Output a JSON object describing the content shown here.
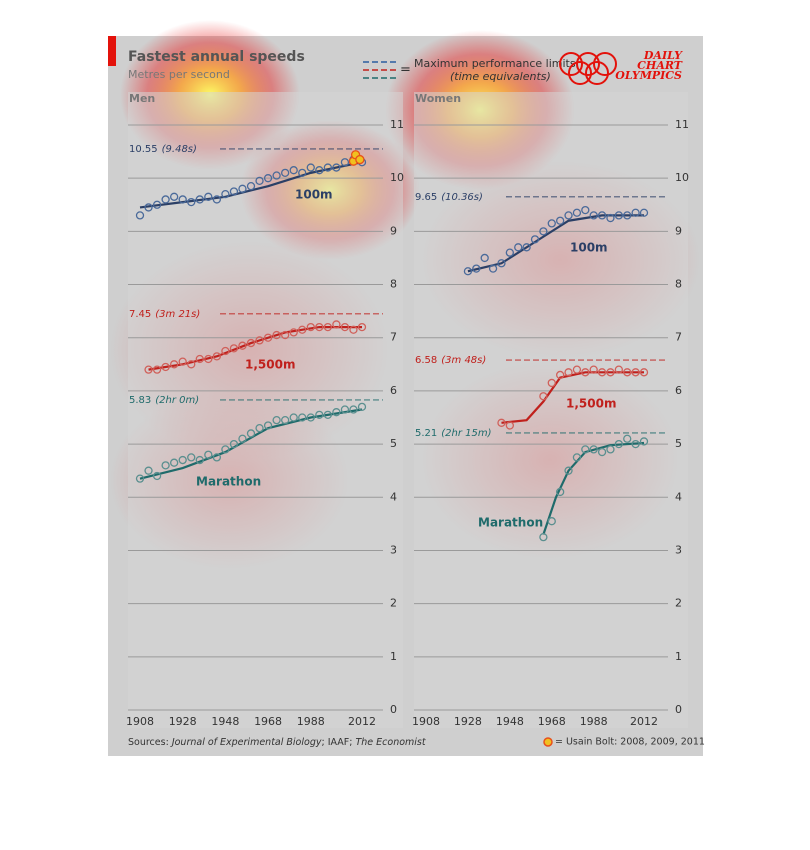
{
  "header": {
    "title": "Fastest annual speeds",
    "subtitle": "Metres per second",
    "legend_text": "Maximum performance limits,",
    "legend_note": "(time equivalents)",
    "logo": [
      "DAILY",
      "CHART",
      "OLYMPICS"
    ]
  },
  "footer": {
    "source": [
      "Sources: ",
      "Journal of Experimental Biology",
      "; IAAF; ",
      "The Economist"
    ],
    "bolt_note": "= Usain Bolt: 2008, 2009, 2011"
  },
  "chart_data": [
    {
      "type": "scatter",
      "title": "Men",
      "ylim": [
        0,
        11.5
      ],
      "yticks": [
        0,
        1,
        2,
        3,
        4,
        5,
        6,
        7,
        8,
        9,
        10,
        11
      ],
      "xlim": [
        1900,
        2016
      ],
      "xticks": [
        1908,
        1928,
        1948,
        1968,
        1988,
        2012
      ],
      "grid": true,
      "series": [
        {
          "name": "100m",
          "color": "#2b3f66",
          "point_color": "#4a6a9a",
          "max": 10.55,
          "max_note": "(9.48s)",
          "x": [
            1908,
            1912,
            1916,
            1920,
            1924,
            1928,
            1932,
            1936,
            1940,
            1944,
            1948,
            1952,
            1956,
            1960,
            1964,
            1968,
            1972,
            1976,
            1980,
            1984,
            1988,
            1992,
            1996,
            2000,
            2004,
            2008,
            2012
          ],
          "values": [
            9.3,
            9.45,
            9.5,
            9.6,
            9.65,
            9.6,
            9.55,
            9.6,
            9.65,
            9.6,
            9.7,
            9.75,
            9.8,
            9.85,
            9.95,
            10.0,
            10.05,
            10.1,
            10.15,
            10.1,
            10.2,
            10.15,
            10.2,
            10.2,
            10.3,
            10.35,
            10.3
          ],
          "trend_x": [
            1908,
            1928,
            1948,
            1968,
            1988,
            2012
          ],
          "trend": [
            9.45,
            9.55,
            9.65,
            9.85,
            10.1,
            10.3
          ]
        },
        {
          "name": "1,500m",
          "color": "#c0201c",
          "point_color": "#d0605a",
          "max": 7.45,
          "max_note": "(3m 21s)",
          "x": [
            1912,
            1916,
            1920,
            1924,
            1928,
            1932,
            1936,
            1940,
            1944,
            1948,
            1952,
            1956,
            1960,
            1964,
            1968,
            1972,
            1976,
            1980,
            1984,
            1988,
            1992,
            1996,
            2000,
            2004,
            2008,
            2012
          ],
          "values": [
            6.4,
            6.4,
            6.45,
            6.5,
            6.55,
            6.5,
            6.6,
            6.6,
            6.65,
            6.75,
            6.8,
            6.85,
            6.9,
            6.95,
            7.0,
            7.05,
            7.05,
            7.1,
            7.15,
            7.2,
            7.2,
            7.2,
            7.25,
            7.2,
            7.15,
            7.2
          ],
          "trend_x": [
            1912,
            1928,
            1944,
            1960,
            1976,
            1992,
            2012
          ],
          "trend": [
            6.4,
            6.5,
            6.65,
            6.9,
            7.1,
            7.2,
            7.2
          ]
        },
        {
          "name": "Marathon",
          "color": "#1f6b6b",
          "point_color": "#5a8f8f",
          "max": 5.83,
          "max_note": "(2hr 0m)",
          "x": [
            1908,
            1912,
            1916,
            1920,
            1924,
            1928,
            1932,
            1936,
            1940,
            1944,
            1948,
            1952,
            1956,
            1960,
            1964,
            1968,
            1972,
            1976,
            1980,
            1984,
            1988,
            1992,
            1996,
            2000,
            2004,
            2008,
            2012
          ],
          "values": [
            4.35,
            4.5,
            4.4,
            4.6,
            4.65,
            4.7,
            4.75,
            4.7,
            4.8,
            4.75,
            4.9,
            5.0,
            5.1,
            5.2,
            5.3,
            5.35,
            5.45,
            5.45,
            5.5,
            5.5,
            5.5,
            5.55,
            5.55,
            5.6,
            5.65,
            5.65,
            5.7
          ],
          "trend_x": [
            1908,
            1928,
            1948,
            1968,
            1988,
            2012
          ],
          "trend": [
            4.35,
            4.55,
            4.85,
            5.3,
            5.5,
            5.65
          ]
        },
        {
          "name": "Usain Bolt",
          "color": "#e8501a",
          "point_color": "#f0c020",
          "x": [
            2008,
            2009,
            2011
          ],
          "values": [
            10.32,
            10.44,
            10.35
          ]
        }
      ]
    },
    {
      "type": "scatter",
      "title": "Women",
      "ylim": [
        0,
        11.5
      ],
      "yticks": [
        0,
        1,
        2,
        3,
        4,
        5,
        6,
        7,
        8,
        9,
        10,
        11
      ],
      "xlim": [
        1900,
        2016
      ],
      "xticks": [
        1908,
        1928,
        1948,
        1968,
        1988,
        2012
      ],
      "grid": true,
      "series": [
        {
          "name": "100m",
          "color": "#2b3f66",
          "point_color": "#4a6a9a",
          "max": 9.65,
          "max_note": "(10.36s)",
          "x": [
            1928,
            1932,
            1936,
            1940,
            1944,
            1948,
            1952,
            1956,
            1960,
            1964,
            1968,
            1972,
            1976,
            1980,
            1984,
            1988,
            1992,
            1996,
            2000,
            2004,
            2008,
            2012
          ],
          "values": [
            8.25,
            8.3,
            8.5,
            8.3,
            8.4,
            8.6,
            8.7,
            8.7,
            8.85,
            9.0,
            9.15,
            9.2,
            9.3,
            9.35,
            9.4,
            9.3,
            9.3,
            9.25,
            9.3,
            9.3,
            9.35,
            9.35
          ],
          "trend_x": [
            1928,
            1944,
            1960,
            1976,
            1992,
            2012
          ],
          "trend": [
            8.25,
            8.4,
            8.8,
            9.2,
            9.3,
            9.3
          ]
        },
        {
          "name": "1,500m",
          "color": "#c0201c",
          "point_color": "#d0605a",
          "max": 6.58,
          "max_note": "(3m 48s)",
          "x": [
            1944,
            1948,
            1964,
            1968,
            1972,
            1976,
            1980,
            1984,
            1988,
            1992,
            1996,
            2000,
            2004,
            2008,
            2012
          ],
          "values": [
            5.4,
            5.35,
            5.9,
            6.15,
            6.3,
            6.35,
            6.4,
            6.35,
            6.4,
            6.35,
            6.35,
            6.4,
            6.35,
            6.35,
            6.35
          ],
          "trend_x": [
            1944,
            1956,
            1964,
            1972,
            1984,
            2012
          ],
          "trend": [
            5.4,
            5.45,
            5.8,
            6.25,
            6.35,
            6.35
          ]
        },
        {
          "name": "Marathon",
          "color": "#1f6b6b",
          "point_color": "#5a8f8f",
          "max": 5.21,
          "max_note": "(2hr 15m)",
          "x": [
            1964,
            1968,
            1972,
            1976,
            1980,
            1984,
            1988,
            1992,
            1996,
            2000,
            2004,
            2008,
            2012
          ],
          "values": [
            3.25,
            3.55,
            4.1,
            4.5,
            4.75,
            4.9,
            4.9,
            4.85,
            4.9,
            5.0,
            5.1,
            5.0,
            5.05
          ],
          "trend_x": [
            1964,
            1970,
            1976,
            1984,
            1996,
            2012
          ],
          "trend": [
            3.3,
            4.0,
            4.5,
            4.85,
            4.98,
            5.02
          ]
        }
      ]
    }
  ]
}
